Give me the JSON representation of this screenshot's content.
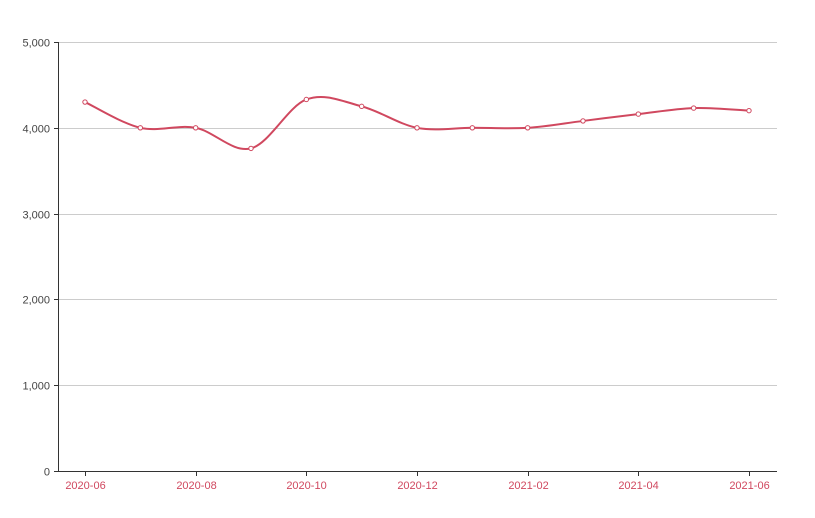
{
  "chart_data": {
    "type": "line",
    "smooth": true,
    "x": [
      "2020-06",
      "2020-07",
      "2020-08",
      "2020-09",
      "2020-10",
      "2020-11",
      "2020-12",
      "2021-01",
      "2021-02",
      "2021-03",
      "2021-04",
      "2021-05",
      "2021-06"
    ],
    "x_tick_labels": [
      "2020-06",
      "2020-08",
      "2020-10",
      "2020-12",
      "2021-02",
      "2021-04",
      "2021-06"
    ],
    "series": [
      {
        "values": [
          4300,
          4000,
          4000,
          3760,
          4330,
          4250,
          4000,
          4000,
          4000,
          4080,
          4160,
          4230,
          4200
        ]
      }
    ],
    "ylim": [
      0,
      5000
    ],
    "y_ticks": [
      0,
      1000,
      2000,
      3000,
      4000,
      5000
    ],
    "y_tick_labels": [
      "0",
      "1,000",
      "2,000",
      "3,000",
      "4,000",
      "5,000"
    ],
    "title": "",
    "xlabel": "",
    "ylabel": "",
    "grid": "horizontal",
    "legend": "none"
  },
  "colors": {
    "line": "#d0485f",
    "x_tick_text": "#d0485f",
    "y_tick_text": "#444444",
    "grid": "#cccccc",
    "axis": "#333333"
  }
}
